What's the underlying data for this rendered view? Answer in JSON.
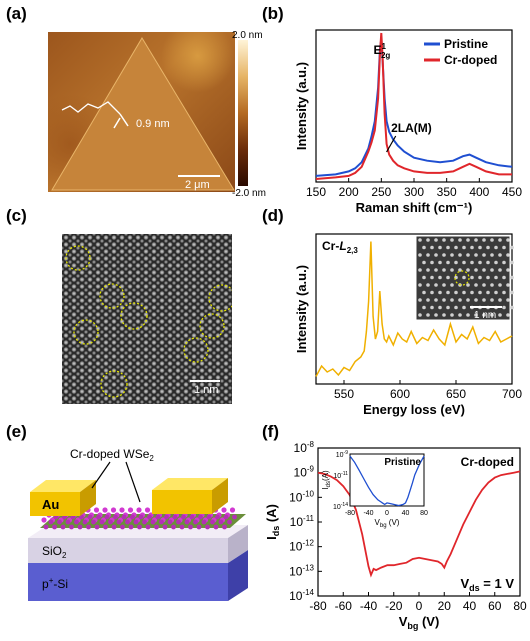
{
  "panels": {
    "a": {
      "label": "(a)",
      "height_annotation": "0.9 nm",
      "scalebar": "2 μm",
      "colorbar_top": "2.0 nm",
      "colorbar_bottom": "-2.0 nm"
    },
    "b": {
      "label": "(b)",
      "peak_label_main": "E",
      "peak_label_sup": "1",
      "peak_label_sub": "2g",
      "peak_label_2": "2LA(M)"
    },
    "c": {
      "label": "(c)",
      "scalebar": "1 nm"
    },
    "d": {
      "label": "(d)",
      "edge_label_prefix": "Cr-",
      "edge_label_L": "L",
      "edge_label_sub": "2,3",
      "inset_scalebar": "1 nm"
    },
    "e": {
      "label": "(e)",
      "material_label": "Cr-doped WSe",
      "material_sub": "2",
      "electrode": "Au",
      "oxide": "SiO",
      "oxide_sub": "2",
      "substrate": "p",
      "substrate_sup": "+",
      "substrate_suffix": "-Si"
    },
    "f": {
      "label": "(f)",
      "condition_main": "V",
      "condition_sub": "ds",
      "condition_value": " = 1 V",
      "inset_legend": "Pristine"
    }
  },
  "chart_data": [
    {
      "type": "line",
      "panel": "b",
      "xlabel": "Raman shift (cm⁻¹)",
      "ylabel": "Intensity (a.u.)",
      "xlim": [
        150,
        450
      ],
      "xticks": [
        150,
        200,
        250,
        300,
        350,
        400,
        450
      ],
      "ylim": [
        0,
        1
      ],
      "legend_position": "top-right",
      "series": [
        {
          "name": "Pristine",
          "color": "#1f4fd1",
          "x": [
            150,
            180,
            200,
            210,
            220,
            230,
            235,
            240,
            245,
            248,
            250,
            252,
            255,
            258,
            262,
            268,
            275,
            285,
            300,
            320,
            340,
            360,
            375,
            385,
            395,
            410,
            430,
            450
          ],
          "y": [
            0.04,
            0.05,
            0.07,
            0.09,
            0.13,
            0.22,
            0.3,
            0.4,
            0.62,
            0.88,
            0.94,
            0.8,
            0.55,
            0.4,
            0.33,
            0.28,
            0.24,
            0.2,
            0.16,
            0.14,
            0.13,
            0.14,
            0.17,
            0.18,
            0.16,
            0.13,
            0.11,
            0.1
          ]
        },
        {
          "name": "Cr-doped",
          "color": "#e0262b",
          "x": [
            150,
            180,
            200,
            210,
            220,
            230,
            235,
            240,
            245,
            248,
            250,
            252,
            255,
            258,
            262,
            268,
            275,
            285,
            300,
            320,
            340,
            360,
            375,
            385,
            395,
            410,
            430,
            450
          ],
          "y": [
            0.02,
            0.03,
            0.04,
            0.06,
            0.1,
            0.2,
            0.26,
            0.34,
            0.55,
            0.85,
            0.98,
            0.82,
            0.45,
            0.25,
            0.18,
            0.14,
            0.11,
            0.09,
            0.07,
            0.06,
            0.06,
            0.07,
            0.1,
            0.12,
            0.1,
            0.07,
            0.05,
            0.05
          ]
        }
      ]
    },
    {
      "type": "line",
      "panel": "d",
      "xlabel": "Energy loss (eV)",
      "ylabel": "Intensity (a.u.)",
      "xlim": [
        525,
        700
      ],
      "xticks": [
        550,
        600,
        650,
        700
      ],
      "ylim": [
        0,
        1
      ],
      "series": [
        {
          "color": "#f0b000",
          "x": [
            525,
            530,
            535,
            540,
            545,
            550,
            555,
            560,
            565,
            568,
            570,
            572,
            574,
            576,
            578,
            580,
            582,
            584,
            586,
            588,
            590,
            594,
            598,
            602,
            606,
            610,
            615,
            620,
            625,
            630,
            635,
            640,
            645,
            650,
            655,
            660,
            665,
            670,
            675,
            680,
            685,
            690,
            695,
            700
          ],
          "y": [
            0.05,
            0.12,
            0.08,
            0.1,
            0.06,
            0.11,
            0.09,
            0.15,
            0.18,
            0.22,
            0.35,
            0.55,
            0.95,
            0.45,
            0.3,
            0.35,
            0.62,
            0.4,
            0.3,
            0.28,
            0.32,
            0.26,
            0.34,
            0.3,
            0.28,
            0.35,
            0.27,
            0.31,
            0.29,
            0.36,
            0.3,
            0.26,
            0.4,
            0.28,
            0.33,
            0.3,
            0.38,
            0.27,
            0.31,
            0.29,
            0.35,
            0.28,
            0.3,
            0.32
          ]
        }
      ]
    },
    {
      "type": "line",
      "panel": "f",
      "xlabel": "V_bg (V)",
      "ylabel": "I_ds (A)",
      "xlim": [
        -80,
        80
      ],
      "xticks": [
        -80,
        -60,
        -40,
        -20,
        0,
        20,
        40,
        60,
        80
      ],
      "ylim_log": [
        -14,
        -8
      ],
      "yticks_log": [
        -14,
        -13,
        -12,
        -11,
        -10,
        -9,
        -8
      ],
      "legend": "Cr-doped",
      "series": [
        {
          "name": "Cr-doped",
          "color": "#e0262b",
          "x": [
            -80,
            -75,
            -70,
            -65,
            -60,
            -55,
            -50,
            -45,
            -40,
            -38,
            -36,
            -34,
            -30,
            -25,
            -20,
            -15,
            -10,
            -5,
            0,
            5,
            10,
            15,
            18,
            20,
            22,
            25,
            30,
            35,
            40,
            45,
            50,
            55,
            60,
            65,
            70,
            75,
            80
          ],
          "y": [
            -9.0,
            -9.05,
            -9.15,
            -9.3,
            -9.55,
            -9.9,
            -10.5,
            -11.5,
            -12.8,
            -13.15,
            -12.9,
            -12.95,
            -12.85,
            -12.75,
            -12.75,
            -12.7,
            -12.65,
            -12.5,
            -12.45,
            -12.5,
            -12.55,
            -12.6,
            -12.7,
            -12.85,
            -12.6,
            -12.3,
            -11.7,
            -11.1,
            -10.6,
            -10.1,
            -9.7,
            -9.4,
            -9.2,
            -9.1,
            -9.05,
            -9.0,
            -8.95
          ]
        }
      ]
    },
    {
      "type": "line",
      "panel": "f-inset",
      "xlabel": "V_bg (V)",
      "ylabel": "I_ds (A)",
      "xlim": [
        -80,
        80
      ],
      "xticks": [
        -80,
        -40,
        0,
        40,
        80
      ],
      "ylim_log": [
        -14,
        -9
      ],
      "yticks_log": [
        -14,
        -11,
        -9
      ],
      "series": [
        {
          "name": "Pristine",
          "color": "#1f4fd1",
          "x": [
            -80,
            -70,
            -60,
            -50,
            -40,
            -30,
            -20,
            -10,
            -5,
            0,
            5,
            10,
            20,
            25,
            30,
            35,
            40,
            45,
            50,
            55,
            60,
            70,
            80
          ],
          "y": [
            -9.2,
            -9.8,
            -10.6,
            -11.4,
            -12.2,
            -12.9,
            -13.4,
            -13.7,
            -13.85,
            -13.7,
            -13.75,
            -13.8,
            -13.9,
            -13.95,
            -13.9,
            -13.85,
            -13.7,
            -13.2,
            -12.5,
            -11.8,
            -11.0,
            -10.0,
            -9.2
          ]
        }
      ]
    }
  ]
}
